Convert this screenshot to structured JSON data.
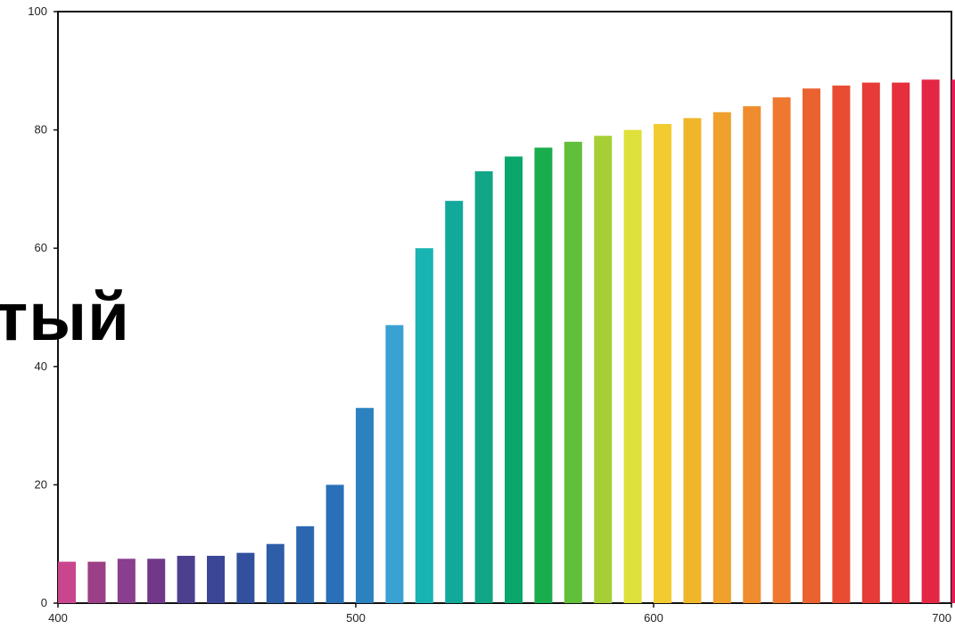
{
  "overlay_text": "тый",
  "chart_data": {
    "type": "bar",
    "title": "",
    "xlabel": "",
    "ylabel": "",
    "ylim": [
      0,
      100
    ],
    "xlim": [
      400,
      700
    ],
    "yticks": [
      0,
      20,
      40,
      60,
      80,
      100
    ],
    "xticks": [
      400,
      500,
      600,
      700
    ],
    "ytick_labels": [
      "0",
      "20",
      "40",
      "60",
      "80",
      "100"
    ],
    "xtick_labels": [
      "400",
      "500",
      "600",
      "700"
    ],
    "grid": false,
    "legend": "none",
    "x": [
      403,
      413,
      423,
      433,
      443,
      453,
      463,
      473,
      483,
      493,
      503,
      513,
      523,
      533,
      543,
      553,
      563,
      573,
      583,
      593,
      603,
      613,
      623,
      633,
      643,
      653,
      663,
      673,
      683,
      693,
      703
    ],
    "values": [
      7,
      7,
      7.5,
      7.5,
      8,
      8,
      8.5,
      10,
      13,
      20,
      33,
      47,
      60,
      68,
      73,
      75.5,
      77,
      78,
      79,
      80,
      81,
      82,
      83,
      84,
      85.5,
      87,
      87.5,
      88,
      88,
      88.5,
      88.5
    ],
    "colors": [
      "#c9468f",
      "#9b3f86",
      "#8a3e8e",
      "#71388a",
      "#4d3f8f",
      "#3b4796",
      "#33509e",
      "#2f5ea8",
      "#2b67b0",
      "#2a70b8",
      "#2c82c0",
      "#3aa2d2",
      "#19b3b3",
      "#12a99b",
      "#10a686",
      "#0aa66c",
      "#19ad4e",
      "#62bf3a",
      "#a6cf36",
      "#dfe03a",
      "#f2cc2f",
      "#f0b62a",
      "#f0a02d",
      "#ef8c2e",
      "#ee782f",
      "#ea6230",
      "#e84d33",
      "#e63b36",
      "#e52f3c",
      "#e42645",
      "#e51c51"
    ]
  }
}
